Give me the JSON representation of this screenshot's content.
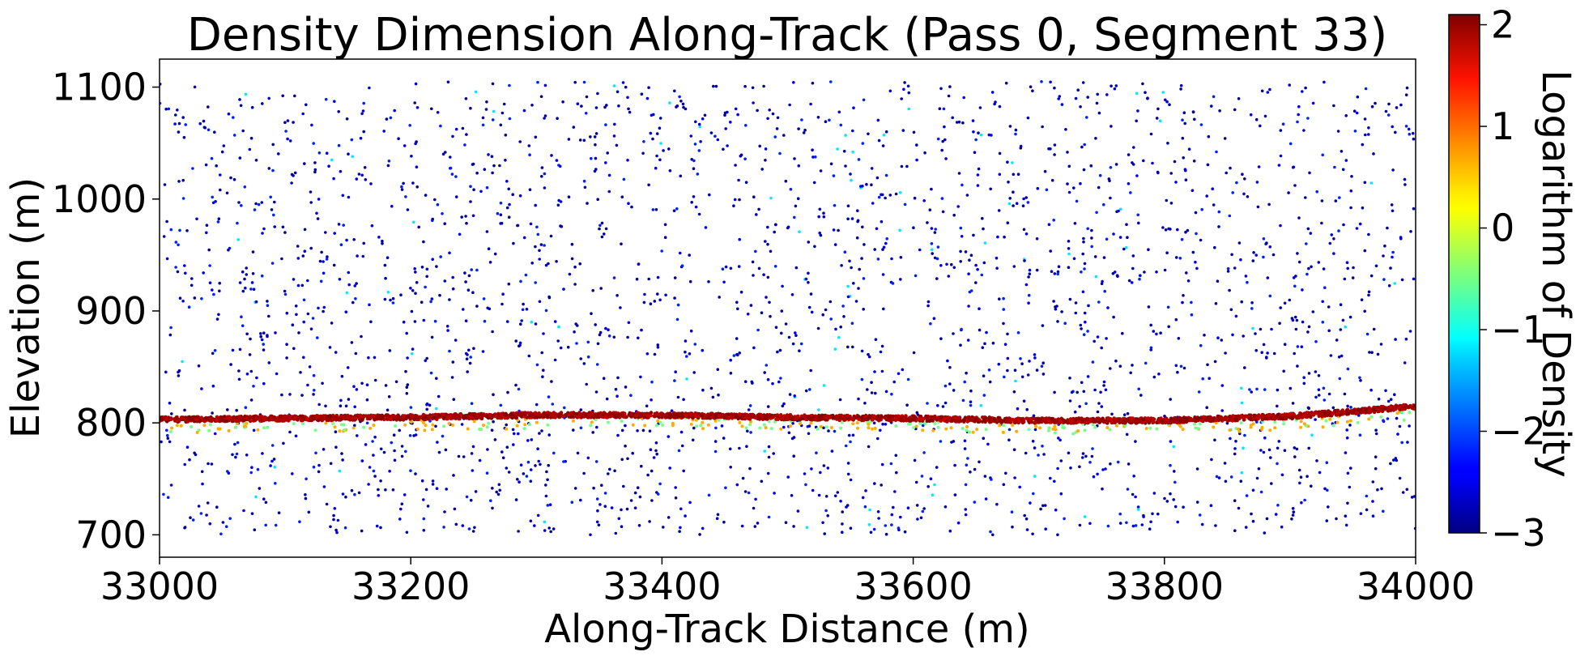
{
  "chart_data": {
    "type": "scatter",
    "title": "Density Dimension Along-Track (Pass 0, Segment 33)",
    "xlabel": "Along-Track Distance (m)",
    "ylabel": "Elevation (m)",
    "xlim": [
      33000,
      34000
    ],
    "ylim": [
      680,
      1125
    ],
    "xticks": [
      33000,
      33200,
      33400,
      33600,
      33800,
      34000
    ],
    "xtick_labels": [
      "33000",
      "33200",
      "33400",
      "33600",
      "33800",
      "34000"
    ],
    "yticks": [
      700,
      800,
      900,
      1000,
      1100
    ],
    "ytick_labels": [
      "700",
      "800",
      "900",
      "1000",
      "1100"
    ],
    "grid": false,
    "legend": "none",
    "colormap": "jet",
    "colorbar": {
      "label": "Logarithm of Density",
      "range": [
        -3,
        2.1
      ],
      "ticks": [
        -3,
        -2,
        -1,
        0,
        1,
        2
      ],
      "tick_labels": [
        "−3",
        "−2",
        "−1",
        "0",
        "1",
        "2"
      ]
    },
    "surface_profile": {
      "description_note": "dense ground return line (color ≈ 2.0)",
      "x": [
        33000,
        33100,
        33200,
        33300,
        33400,
        33500,
        33600,
        33700,
        33800,
        33850,
        33900,
        33950,
        34000
      ],
      "y": [
        803,
        804,
        805,
        807,
        807,
        805,
        804,
        802,
        802,
        804,
        806,
        810,
        815
      ]
    },
    "background_noise": {
      "x_range": [
        33000,
        34000
      ],
      "y_range": [
        700,
        1105
      ],
      "approx_points": 2600,
      "typical_log_density": -2.8
    }
  }
}
